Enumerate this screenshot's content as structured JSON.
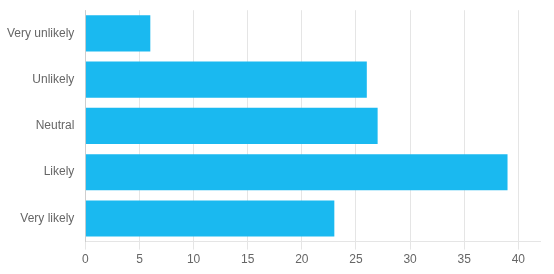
{
  "chart_data": {
    "type": "bar",
    "orientation": "horizontal",
    "categories": [
      "Very likely",
      "Likely",
      "Neutral",
      "Unlikely",
      "Very unlikely"
    ],
    "values": [
      23,
      39,
      27,
      26,
      6
    ],
    "color": "#1ab9f0",
    "xlim": [
      0,
      42
    ],
    "xticks": [
      0,
      5,
      10,
      15,
      20,
      25,
      30,
      35,
      40
    ],
    "grid": "x"
  }
}
